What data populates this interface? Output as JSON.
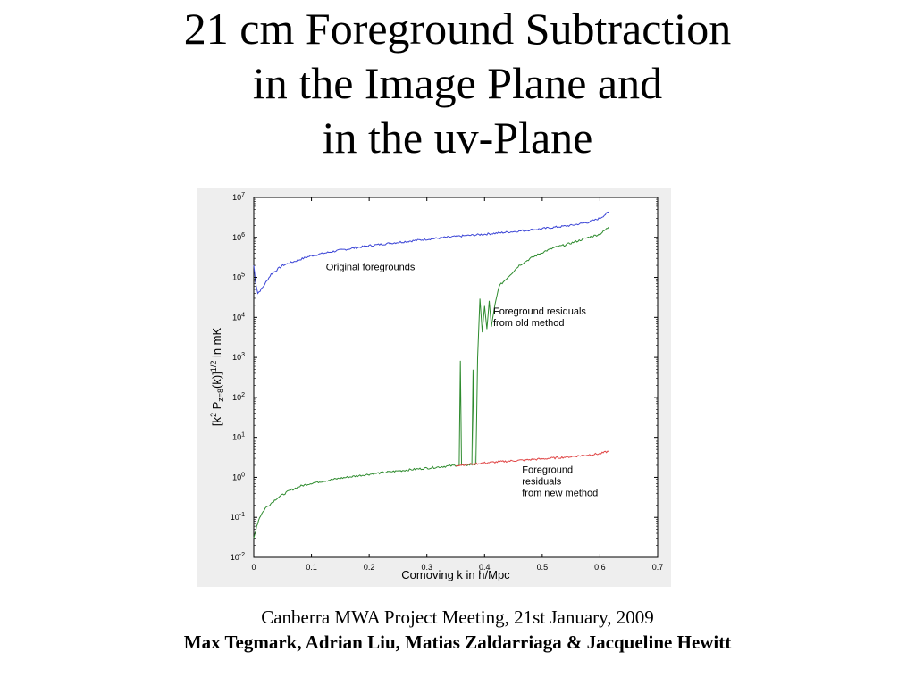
{
  "slide": {
    "title_lines": [
      "21 cm Foreground Subtraction",
      "in the Image Plane and",
      "in the uv-Plane"
    ],
    "caption_line": "Canberra MWA Project Meeting, 21st January, 2009",
    "authors_line": "Max Tegmark, Adrian Liu, Matias Zaldarriaga & Jacqueline Hewitt"
  },
  "chart_data": {
    "type": "line",
    "title": "",
    "xlabel": "Comoving k in h/Mpc",
    "ylabel": "[k2 Pz=8(k)]1/2 in mK",
    "xlim": [
      0,
      0.7
    ],
    "ylim": [
      0.01,
      10000000
    ],
    "y_scale": "log",
    "grid": false,
    "x_ticks": [
      "0",
      "0.1",
      "0.2",
      "0.3",
      "0.4",
      "0.5",
      "0.6",
      "0.7"
    ],
    "y_ticks": [
      {
        "base": "10",
        "exp": "-2"
      },
      {
        "base": "10",
        "exp": "-1"
      },
      {
        "base": "10",
        "exp": "0"
      },
      {
        "base": "10",
        "exp": "1"
      },
      {
        "base": "10",
        "exp": "2"
      },
      {
        "base": "10",
        "exp": "3"
      },
      {
        "base": "10",
        "exp": "4"
      },
      {
        "base": "10",
        "exp": "5"
      },
      {
        "base": "10",
        "exp": "6"
      },
      {
        "base": "10",
        "exp": "7"
      }
    ],
    "series": [
      {
        "name": "Original foregrounds",
        "color": "#3b45d6",
        "points": [
          [
            0.0,
            200000
          ],
          [
            0.003,
            80000
          ],
          [
            0.007,
            40000
          ],
          [
            0.015,
            55000
          ],
          [
            0.03,
            120000
          ],
          [
            0.05,
            200000
          ],
          [
            0.08,
            280000
          ],
          [
            0.1,
            350000
          ],
          [
            0.15,
            480000
          ],
          [
            0.2,
            620000
          ],
          [
            0.25,
            750000
          ],
          [
            0.3,
            900000
          ],
          [
            0.35,
            1050000
          ],
          [
            0.4,
            1200000
          ],
          [
            0.45,
            1400000
          ],
          [
            0.5,
            1650000
          ],
          [
            0.55,
            2000000
          ],
          [
            0.58,
            2400000
          ],
          [
            0.6,
            3000000
          ],
          [
            0.615,
            4300000
          ]
        ]
      },
      {
        "name": "Foreground residuals from old method",
        "color": "#2e8b2e",
        "points": [
          [
            0.0,
            0.03
          ],
          [
            0.005,
            0.06
          ],
          [
            0.01,
            0.1
          ],
          [
            0.02,
            0.17
          ],
          [
            0.04,
            0.3
          ],
          [
            0.06,
            0.45
          ],
          [
            0.08,
            0.6
          ],
          [
            0.1,
            0.72
          ],
          [
            0.15,
            0.95
          ],
          [
            0.2,
            1.2
          ],
          [
            0.25,
            1.45
          ],
          [
            0.3,
            1.7
          ],
          [
            0.35,
            2.0
          ],
          [
            0.356,
            2.0
          ],
          [
            0.358,
            800
          ],
          [
            0.36,
            2.0
          ],
          [
            0.378,
            2.1
          ],
          [
            0.38,
            500
          ],
          [
            0.382,
            2.1
          ],
          [
            0.385,
            2.1
          ],
          [
            0.388,
            1000
          ],
          [
            0.392,
            30000
          ],
          [
            0.396,
            4000
          ],
          [
            0.4,
            20000
          ],
          [
            0.404,
            5000
          ],
          [
            0.408,
            25000
          ],
          [
            0.412,
            6000
          ],
          [
            0.418,
            20000
          ],
          [
            0.425,
            60000
          ],
          [
            0.44,
            100000
          ],
          [
            0.46,
            200000
          ],
          [
            0.48,
            300000
          ],
          [
            0.5,
            420000
          ],
          [
            0.52,
            550000
          ],
          [
            0.54,
            650000
          ],
          [
            0.56,
            800000
          ],
          [
            0.58,
            1000000
          ],
          [
            0.6,
            1200000
          ],
          [
            0.615,
            1800000
          ]
        ]
      },
      {
        "name": "Foreground residuals from new method",
        "color": "#e04545",
        "points": [
          [
            0.35,
            2.0
          ],
          [
            0.4,
            2.3
          ],
          [
            0.45,
            2.6
          ],
          [
            0.5,
            2.9
          ],
          [
            0.55,
            3.3
          ],
          [
            0.6,
            3.9
          ],
          [
            0.615,
            4.5
          ]
        ]
      }
    ],
    "annotations": [
      {
        "lines": [
          "Original foregrounds"
        ],
        "x": 0.125,
        "y": 150000
      },
      {
        "lines": [
          "Foreground residuals",
          "from old method"
        ],
        "x": 0.415,
        "y": 12000
      },
      {
        "lines": [
          "Foreground",
          "residuals",
          "from new method"
        ],
        "x": 0.465,
        "y": 1.3
      }
    ]
  }
}
